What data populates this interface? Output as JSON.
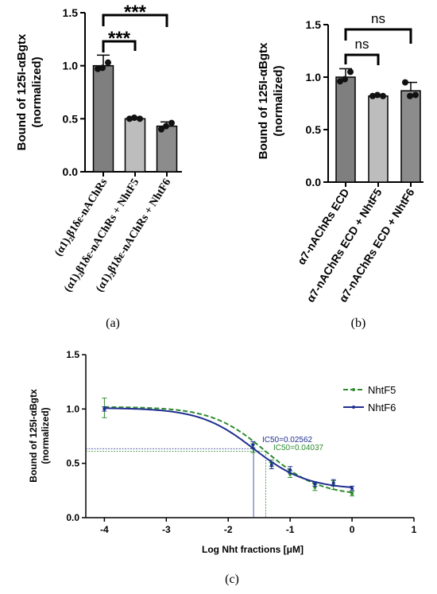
{
  "chart_data": [
    {
      "panel": "(a)",
      "type": "bar",
      "ylabel": [
        "Bound of 125I-αBgtx",
        "(normalized)"
      ],
      "ylim": [
        0,
        1.5
      ],
      "yticks": [
        "0.0",
        "0.5",
        "1.0",
        "1.5"
      ],
      "categories": [
        "(α1)₂β1δε-nAChRs",
        "(α1)₂β1δε-nAChRs + NhtF5",
        "(α1)₂β1δε-nAChRs + NhtF6"
      ],
      "values": [
        1.0,
        0.5,
        0.43
      ],
      "errors": [
        0.1,
        0.01,
        0.04
      ],
      "points": [
        [
          0.97,
          1.03,
          0.98
        ],
        [
          0.5,
          0.5,
          0.51
        ],
        [
          0.4,
          0.46,
          0.43
        ]
      ],
      "bar_colors": [
        "#7f7f7f",
        "#bdbdbd",
        "#8c8c8c"
      ],
      "significance": [
        {
          "from": 0,
          "to": 1,
          "label": "***"
        },
        {
          "from": 0,
          "to": 2,
          "label": "***"
        }
      ]
    },
    {
      "panel": "(b)",
      "type": "bar",
      "ylabel": [
        "Bound of 125I-αBgtx",
        "(normalized)"
      ],
      "ylim": [
        0,
        1.5
      ],
      "yticks": [
        "0.0",
        "0.5",
        "1.0",
        "1.5"
      ],
      "categories": [
        "α7-nAChRs ECD",
        "α7-nAChRs ECD + NhtF5",
        "α7-nAChRs ECD + NhtF6"
      ],
      "values": [
        1.0,
        0.82,
        0.87
      ],
      "errors": [
        0.08,
        0.01,
        0.08
      ],
      "points": [
        [
          0.96,
          1.05,
          0.98
        ],
        [
          0.82,
          0.82,
          0.83
        ],
        [
          0.95,
          0.83,
          0.82
        ]
      ],
      "bar_colors": [
        "#7f7f7f",
        "#bdbdbd",
        "#8c8c8c"
      ],
      "significance": [
        {
          "from": 0,
          "to": 1,
          "label": "ns"
        },
        {
          "from": 0,
          "to": 2,
          "label": "ns"
        }
      ]
    },
    {
      "panel": "(c)",
      "type": "line",
      "xlabel": "Log Nht fractions [μM]",
      "ylabel": [
        "Bound of 125I-αBgtx",
        "(normalized)"
      ],
      "xlim": [
        -4.3,
        1
      ],
      "ylim": [
        0,
        1.5
      ],
      "xticks": [
        "-4",
        "-3",
        "-2",
        "-1",
        "0",
        "1"
      ],
      "yticks": [
        "0.0",
        "0.5",
        "1.0",
        "1.5"
      ],
      "legend_position": "top-right",
      "series": [
        {
          "name": "NhtF5",
          "color": "#2e8b2e",
          "dash": true,
          "ic50_label": "IC50=0.04037",
          "log_ic50": -1.394,
          "top": 1.02,
          "bottom": 0.2,
          "hill": 1.0,
          "x": [
            -4,
            -1.6,
            -1.3,
            -1.0,
            -0.6,
            -0.3,
            0
          ],
          "y": [
            1.01,
            0.64,
            0.5,
            0.4,
            0.28,
            0.3,
            0.22
          ],
          "err": [
            0.09,
            0.04,
            0.03,
            0.03,
            0.03,
            0.04,
            0.02
          ]
        },
        {
          "name": "NhtF6",
          "color": "#1f2f8f",
          "dash": false,
          "ic50_label": "IC50=0.02562",
          "log_ic50": -1.591,
          "top": 1.01,
          "bottom": 0.26,
          "hill": 1.0,
          "x": [
            -4,
            -1.6,
            -1.3,
            -1.0,
            -0.6,
            -0.3,
            0
          ],
          "y": [
            1.0,
            0.67,
            0.48,
            0.44,
            0.31,
            0.32,
            0.27
          ],
          "err": [
            0.02,
            0.03,
            0.03,
            0.03,
            0.02,
            0.03,
            0.02
          ]
        }
      ]
    }
  ]
}
